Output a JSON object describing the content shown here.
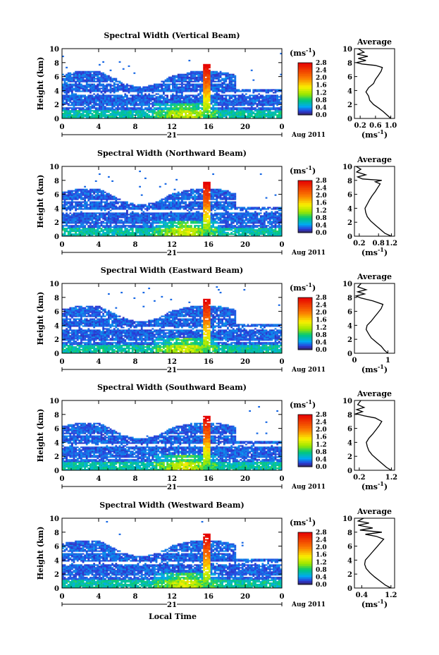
{
  "figure": {
    "xlabel_bottom": "Local Time",
    "date_label": "Aug 2011",
    "day_label": "21",
    "side_title": "Average",
    "colorbar_unit_base": "(ms",
    "colorbar_unit_exp": "-1",
    "colorbar_unit_close": ")",
    "ylabel": "Height (km)"
  },
  "chart_data": [
    {
      "type": "heatmap",
      "title": "Spectral Width (Vertical Beam)",
      "xlim": [
        0,
        24
      ],
      "ylim": [
        0,
        10
      ],
      "x_ticks": [
        "0",
        "4",
        "8",
        "12",
        "16",
        "20",
        "0"
      ],
      "y_ticks": [
        "0",
        "2",
        "4",
        "6",
        "8",
        "10"
      ],
      "colorbar_ticks": [
        "0.0",
        "0.4",
        "0.8",
        "1.2",
        "1.6",
        "2.0",
        "2.4",
        "2.8"
      ],
      "profile": {
        "x_ticks": [
          "0.2",
          "0.6",
          "1.0"
        ],
        "xlim": [
          0.05,
          1.1
        ],
        "points": [
          [
            1.0,
            0
          ],
          [
            0.92,
            0.4
          ],
          [
            0.8,
            1.0
          ],
          [
            0.68,
            1.5
          ],
          [
            0.55,
            2.0
          ],
          [
            0.45,
            2.6
          ],
          [
            0.42,
            3.2
          ],
          [
            0.35,
            3.8
          ],
          [
            0.42,
            4.4
          ],
          [
            0.55,
            5.0
          ],
          [
            0.6,
            5.6
          ],
          [
            0.68,
            6.2
          ],
          [
            0.75,
            6.8
          ],
          [
            0.78,
            7.3
          ],
          [
            0.6,
            7.6
          ],
          [
            0.25,
            7.8
          ],
          [
            0.1,
            8.0
          ],
          [
            0.35,
            8.3
          ],
          [
            0.15,
            8.6
          ],
          [
            0.4,
            8.9
          ],
          [
            0.12,
            9.2
          ],
          [
            0.3,
            9.5
          ],
          [
            0.15,
            10
          ]
        ]
      }
    },
    {
      "type": "heatmap",
      "title": "Spectral Width (Northward Beam)",
      "xlim": [
        0,
        24
      ],
      "ylim": [
        0,
        10
      ],
      "x_ticks": [
        "0",
        "4",
        "8",
        "12",
        "16",
        "20",
        "0"
      ],
      "y_ticks": [
        "0",
        "2",
        "4",
        "6",
        "8",
        "10"
      ],
      "colorbar_ticks": [
        "0.0",
        "0.4",
        "0.8",
        "1.2",
        "1.6",
        "2.0",
        "2.4",
        "2.8"
      ],
      "profile": {
        "x_ticks": [
          "0.2",
          "0.8",
          "1.2"
        ],
        "xlim": [
          0.05,
          1.3
        ],
        "points": [
          [
            1.2,
            0
          ],
          [
            1.0,
            0.4
          ],
          [
            0.85,
            1.0
          ],
          [
            0.7,
            1.6
          ],
          [
            0.55,
            2.2
          ],
          [
            0.45,
            2.8
          ],
          [
            0.4,
            3.4
          ],
          [
            0.38,
            4.0
          ],
          [
            0.45,
            4.6
          ],
          [
            0.52,
            5.2
          ],
          [
            0.6,
            5.8
          ],
          [
            0.7,
            6.4
          ],
          [
            0.78,
            7.0
          ],
          [
            0.85,
            7.5
          ],
          [
            0.7,
            7.8
          ],
          [
            0.9,
            8.0
          ],
          [
            0.3,
            8.2
          ],
          [
            0.15,
            8.5
          ],
          [
            0.4,
            8.8
          ],
          [
            0.12,
            9.2
          ],
          [
            0.25,
            9.6
          ],
          [
            0.1,
            10
          ]
        ]
      }
    },
    {
      "type": "heatmap",
      "title": "Spectral Width (Eastward Beam)",
      "xlim": [
        0,
        24
      ],
      "ylim": [
        0,
        10
      ],
      "x_ticks": [
        "0",
        "4",
        "8",
        "12",
        "16",
        "20",
        "0"
      ],
      "y_ticks": [
        "0",
        "2",
        "4",
        "6",
        "8",
        "10"
      ],
      "colorbar_ticks": [
        "0.0",
        "0.4",
        "0.8",
        "1.2",
        "1.6",
        "2.0",
        "2.4",
        "2.8"
      ],
      "profile": {
        "x_ticks": [
          "0",
          "1"
        ],
        "xlim": [
          0,
          1.2
        ],
        "points": [
          [
            1.0,
            0
          ],
          [
            0.9,
            0.4
          ],
          [
            0.8,
            1.0
          ],
          [
            0.65,
            1.6
          ],
          [
            0.5,
            2.2
          ],
          [
            0.42,
            2.8
          ],
          [
            0.35,
            3.4
          ],
          [
            0.38,
            4.0
          ],
          [
            0.5,
            4.6
          ],
          [
            0.6,
            5.2
          ],
          [
            0.7,
            5.8
          ],
          [
            0.8,
            6.4
          ],
          [
            0.85,
            7.0
          ],
          [
            0.55,
            7.5
          ],
          [
            0.2,
            7.9
          ],
          [
            0.05,
            8.2
          ],
          [
            0.3,
            8.5
          ],
          [
            0.1,
            8.8
          ],
          [
            0.35,
            9.1
          ],
          [
            0.1,
            9.5
          ],
          [
            0.2,
            10
          ]
        ]
      }
    },
    {
      "type": "heatmap",
      "title": "Spectral Width (Southward Beam)",
      "xlim": [
        0,
        24
      ],
      "ylim": [
        0,
        10
      ],
      "x_ticks": [
        "0",
        "4",
        "8",
        "12",
        "16",
        "20",
        "0"
      ],
      "y_ticks": [
        "0",
        "2",
        "4",
        "6",
        "8",
        "10"
      ],
      "colorbar_ticks": [
        "0.0",
        "0.4",
        "0.8",
        "1.2",
        "1.6",
        "2.0",
        "2.4",
        "2.8"
      ],
      "profile": {
        "x_ticks": [
          "0.2",
          "1.2"
        ],
        "xlim": [
          0.05,
          1.3
        ],
        "points": [
          [
            1.2,
            0
          ],
          [
            1.05,
            0.4
          ],
          [
            0.9,
            1.0
          ],
          [
            0.75,
            1.6
          ],
          [
            0.6,
            2.2
          ],
          [
            0.5,
            2.8
          ],
          [
            0.45,
            3.4
          ],
          [
            0.42,
            4.0
          ],
          [
            0.5,
            4.6
          ],
          [
            0.62,
            5.2
          ],
          [
            0.72,
            5.8
          ],
          [
            0.82,
            6.4
          ],
          [
            0.9,
            7.0
          ],
          [
            0.7,
            7.5
          ],
          [
            0.35,
            7.8
          ],
          [
            0.1,
            8.1
          ],
          [
            0.3,
            8.4
          ],
          [
            0.12,
            8.7
          ],
          [
            0.35,
            9.0
          ],
          [
            0.15,
            9.4
          ],
          [
            0.25,
            10
          ]
        ]
      }
    },
    {
      "type": "heatmap",
      "title": "Spectral Width (Westward Beam)",
      "xlim": [
        0,
        24
      ],
      "ylim": [
        0,
        10
      ],
      "x_ticks": [
        "0",
        "4",
        "8",
        "12",
        "16",
        "20",
        "0"
      ],
      "y_ticks": [
        "0",
        "2",
        "4",
        "6",
        "8",
        "10"
      ],
      "colorbar_ticks": [
        "0.0",
        "0.4",
        "0.8",
        "1.2",
        "1.6",
        "2.0",
        "2.4",
        "2.8"
      ],
      "profile": {
        "x_ticks": [
          "0.4",
          "1.2"
        ],
        "xlim": [
          0.2,
          1.3
        ],
        "points": [
          [
            1.2,
            0
          ],
          [
            1.05,
            0.4
          ],
          [
            0.9,
            1.0
          ],
          [
            0.75,
            1.6
          ],
          [
            0.62,
            2.2
          ],
          [
            0.52,
            2.8
          ],
          [
            0.48,
            3.4
          ],
          [
            0.5,
            4.0
          ],
          [
            0.6,
            4.6
          ],
          [
            0.7,
            5.2
          ],
          [
            0.8,
            5.8
          ],
          [
            0.9,
            6.4
          ],
          [
            1.0,
            7.0
          ],
          [
            0.8,
            7.4
          ],
          [
            0.5,
            7.7
          ],
          [
            0.95,
            8.0
          ],
          [
            0.35,
            8.3
          ],
          [
            0.7,
            8.6
          ],
          [
            0.3,
            9.0
          ],
          [
            0.6,
            9.3
          ],
          [
            0.3,
            9.6
          ],
          [
            0.45,
            10
          ]
        ]
      }
    }
  ]
}
